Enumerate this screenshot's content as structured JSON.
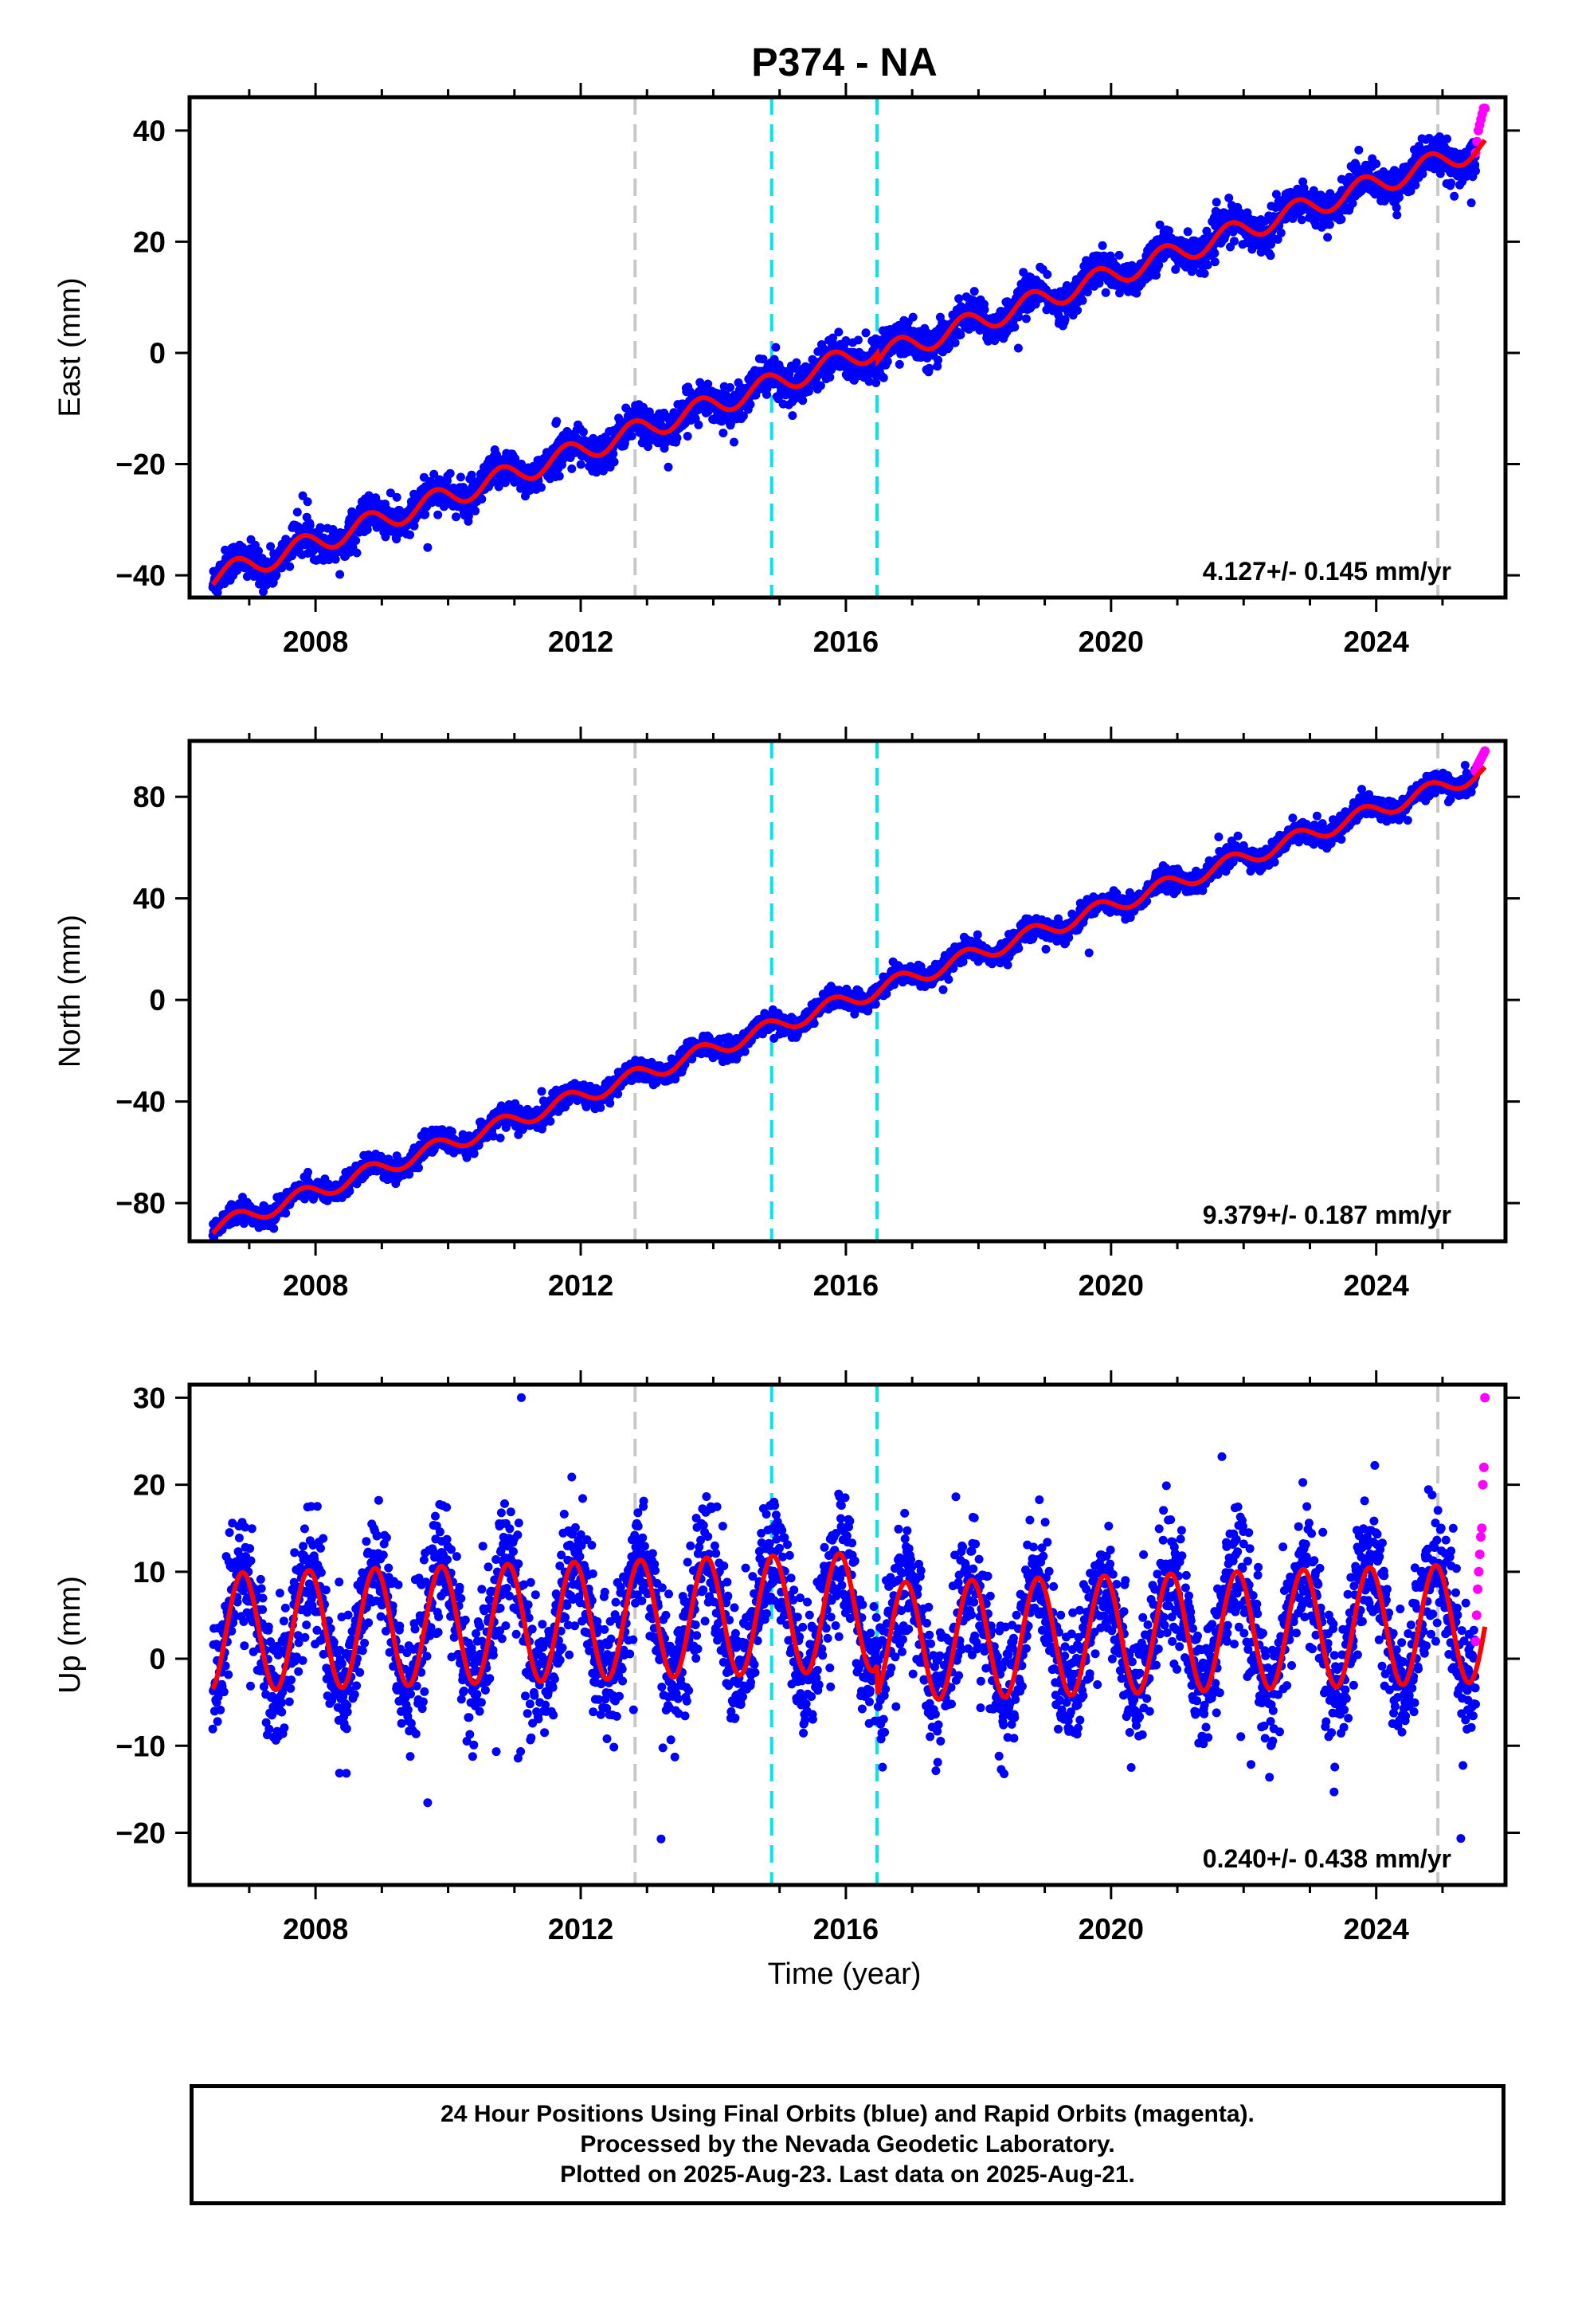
{
  "colors": {
    "final_orbits": "#0000ff",
    "rapid_orbits": "#ff00ff",
    "fit": "#ff0000",
    "event_gray": "#c8c8c8",
    "event_cyan": "#00e5ee",
    "frame": "#000000"
  },
  "chart_data": {
    "title": "P374 - NA",
    "xlabel": "Time (year)",
    "xlim": [
      2006.1,
      2025.95
    ],
    "x_ticks": [
      2008,
      2012,
      2016,
      2020,
      2024
    ],
    "x_tick_labels": [
      "2008",
      "2012",
      "2016",
      "2020",
      "2024"
    ],
    "data_start": 2006.45,
    "data_end": 2025.64,
    "rapid_start": 2025.5,
    "event_lines": [
      {
        "x": 2012.82,
        "style": "gray-dashed"
      },
      {
        "x": 2014.88,
        "style": "cyan-dashed"
      },
      {
        "x": 2016.47,
        "style": "cyan-dashed"
      },
      {
        "x": 2024.93,
        "style": "gray-dashed"
      }
    ],
    "panels": [
      {
        "type": "scatter",
        "component": "east",
        "ylabel": "East (mm)",
        "ylim": [
          -44,
          46
        ],
        "y_ticks": [
          -40,
          -20,
          0,
          20,
          40
        ],
        "y_tick_labels": [
          "−40",
          "−20",
          "0",
          "20",
          "40"
        ],
        "rate_label": "4.127+/- 0.145 mm/yr",
        "trend_start": -40.5,
        "rate": 4.127,
        "seasonal_amp": 2.0,
        "seasonal_phase_year": 0.55,
        "steps": [
          {
            "x": 2016.47,
            "dy": -1.5
          }
        ],
        "noise": 1.6,
        "rapid_values": [
          36,
          38,
          40,
          41,
          42,
          43,
          44,
          44
        ]
      },
      {
        "type": "scatter",
        "component": "north",
        "ylabel": "North (mm)",
        "ylim": [
          -95,
          102
        ],
        "y_ticks": [
          -80,
          -40,
          0,
          40,
          80
        ],
        "y_tick_labels": [
          "−80",
          "−40",
          "0",
          "40",
          "80"
        ],
        "rate_label": "9.379+/- 0.187 mm/yr",
        "trend_start": -90,
        "rate": 9.379,
        "seasonal_amp": 3.2,
        "seasonal_phase_year": 0.55,
        "steps": [],
        "noise": 2.0,
        "rapid_values": [
          90,
          92,
          93,
          94,
          95,
          96,
          97,
          98
        ]
      },
      {
        "type": "scatter",
        "component": "up",
        "ylabel": "Up (mm)",
        "ylim": [
          -26,
          31.5
        ],
        "y_ticks": [
          -20,
          -10,
          0,
          10,
          20,
          30
        ],
        "y_tick_labels": [
          "−20",
          "−10",
          "0",
          "10",
          "20",
          "30"
        ],
        "rate_label": "0.240+/- 0.438 mm/yr",
        "trend_start": 3,
        "rate": 0.24,
        "seasonal_amp": 6.8,
        "seasonal_phase_year": 0.65,
        "steps": [
          {
            "x": 2016.47,
            "dy": -3.5
          }
        ],
        "noise": 3.6,
        "rapid_values": [
          2,
          5,
          8,
          10,
          12,
          14,
          15,
          20,
          22,
          30
        ]
      }
    ]
  },
  "caption": {
    "line1": "24 Hour Positions Using Final Orbits (blue) and Rapid Orbits (magenta).",
    "line2": "Processed by the Nevada Geodetic Laboratory.",
    "line3": "Plotted on 2025-Aug-23. Last data on 2025-Aug-21."
  }
}
